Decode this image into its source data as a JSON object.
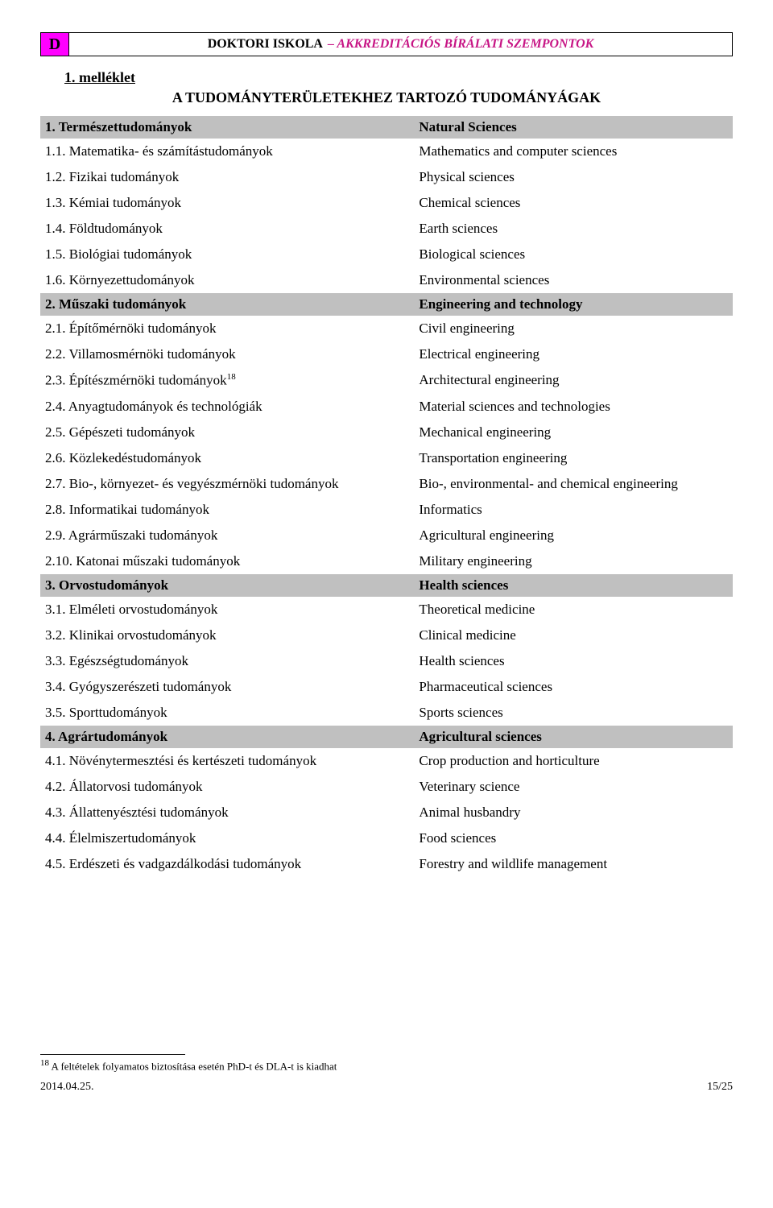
{
  "header": {
    "letter": "D",
    "title_black": "DOKTORI ISKOLA",
    "title_magenta": "– AKKREDITÁCIÓS BÍRÁLATI SZEMPONTOK"
  },
  "attachment_label": "1. melléklet",
  "subtitle": "A TUDOMÁNYTERÜLETEKHEZ TARTOZÓ TUDOMÁNYÁGAK",
  "groups": [
    {
      "left": "1. Természettudományok",
      "right": "Natural Sciences",
      "rows": [
        {
          "left": "1.1. Matematika- és számítástudományok",
          "right": "Mathematics and computer sciences"
        },
        {
          "left": "1.2. Fizikai tudományok",
          "right": "Physical sciences"
        },
        {
          "left": "1.3. Kémiai tudományok",
          "right": "Chemical sciences"
        },
        {
          "left": "1.4. Földtudományok",
          "right": "Earth sciences"
        },
        {
          "left": "1.5. Biológiai tudományok",
          "right": "Biological sciences"
        },
        {
          "left": "1.6. Környezettudományok",
          "right": "Environmental sciences"
        }
      ]
    },
    {
      "left": "2. Műszaki tudományok",
      "right": "Engineering and technology",
      "rows": [
        {
          "left": "2.1. Építőmérnöki tudományok",
          "right": "Civil engineering"
        },
        {
          "left": "2.2. Villamosmérnöki tudományok",
          "right": "Electrical engineering"
        },
        {
          "left": "2.3. Építészmérnöki tudományok",
          "sup": "18",
          "right": "Architectural engineering"
        },
        {
          "left": "2.4. Anyagtudományok és technológiák",
          "right": "Material sciences and technologies"
        },
        {
          "left": "2.5. Gépészeti tudományok",
          "right": "Mechanical engineering"
        },
        {
          "left": "2.6. Közlekedéstudományok",
          "right": "Transportation engineering"
        },
        {
          "left": "2.7. Bio-, környezet- és vegyészmérnöki tudományok",
          "right": "Bio-, environmental- and chemical engineering"
        },
        {
          "left": "2.8. Informatikai tudományok",
          "right": "Informatics"
        },
        {
          "left": "2.9. Agrárműszaki tudományok",
          "right": "Agricultural engineering"
        },
        {
          "left": "2.10. Katonai műszaki tudományok",
          "right": "Military engineering"
        }
      ]
    },
    {
      "left": "3. Orvostudományok",
      "right": "Health sciences",
      "rows": [
        {
          "left": "3.1. Elméleti orvostudományok",
          "right": "Theoretical medicine"
        },
        {
          "left": "3.2. Klinikai orvostudományok",
          "right": "Clinical medicine"
        },
        {
          "left": "3.3. Egészségtudományok",
          "right": "Health sciences"
        },
        {
          "left": "3.4. Gyógyszerészeti tudományok",
          "right": "Pharmaceutical sciences"
        },
        {
          "left": "3.5. Sporttudományok",
          "right": "Sports sciences"
        }
      ]
    },
    {
      "left": "4. Agrártudományok",
      "right": "Agricultural sciences",
      "rows": [
        {
          "left": "4.1. Növénytermesztési és kertészeti tudományok",
          "right": "Crop production and horticulture"
        },
        {
          "left": "4.2. Állatorvosi tudományok",
          "right": "Veterinary science"
        },
        {
          "left": "4.3. Állattenyésztési tudományok",
          "right": "Animal husbandry"
        },
        {
          "left": "4.4. Élelmiszertudományok",
          "right": "Food sciences"
        },
        {
          "left": "4.5. Erdészeti és vadgazdálkodási tudományok",
          "right": "Forestry and wildlife management"
        }
      ]
    }
  ],
  "footnote": {
    "ref": "18",
    "text": " A feltételek folyamatos biztosítása esetén PhD-t és DLA-t is kiadhat"
  },
  "footer": {
    "date": "2014.04.25.",
    "page": "15/25"
  },
  "colors": {
    "magenta_bg": "#ff00ff",
    "magenta_text": "#c71585",
    "group_bg": "#c0c0c0",
    "text": "#000000",
    "page_bg": "#ffffff"
  },
  "typography": {
    "body_font": "Times New Roman",
    "body_size_pt": 12,
    "header_size_pt": 14
  }
}
